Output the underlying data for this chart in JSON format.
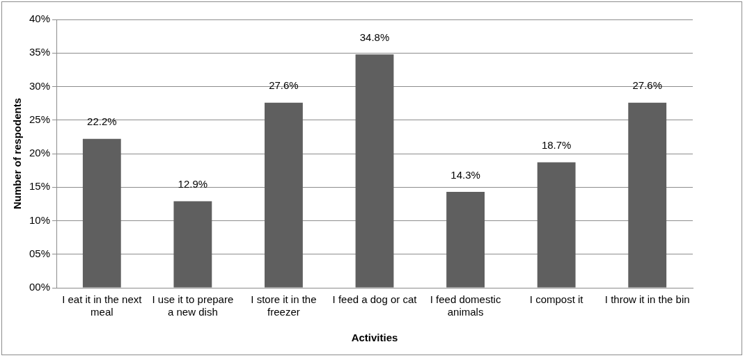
{
  "chart_data": {
    "type": "bar",
    "xlabel": "Activities",
    "ylabel": "Number of respodents",
    "categories": [
      "I eat it in the next meal",
      "I use it to prepare a new dish",
      "I store it in the freezer",
      "I feed a dog or cat",
      "I feed domestic animals",
      "I compost it",
      "I throw it in the bin"
    ],
    "values": [
      22.2,
      12.9,
      27.6,
      34.8,
      14.3,
      18.7,
      27.6
    ],
    "value_labels": [
      "22.2%",
      "12.9%",
      "27.6%",
      "34.8%",
      "14.3%",
      "18.7%",
      "27.6%"
    ],
    "color": "#5f5f5f",
    "ylim": [
      0,
      40
    ],
    "yticks": [
      {
        "value": 0,
        "label": "00%"
      },
      {
        "value": 5,
        "label": "05%"
      },
      {
        "value": 10,
        "label": "10%"
      },
      {
        "value": 15,
        "label": "15%"
      },
      {
        "value": 20,
        "label": "20%"
      },
      {
        "value": 25,
        "label": "25%"
      },
      {
        "value": 30,
        "label": "30%"
      },
      {
        "value": 35,
        "label": "35%"
      },
      {
        "value": 40,
        "label": "40%"
      }
    ],
    "grid": "y",
    "legend": false
  }
}
